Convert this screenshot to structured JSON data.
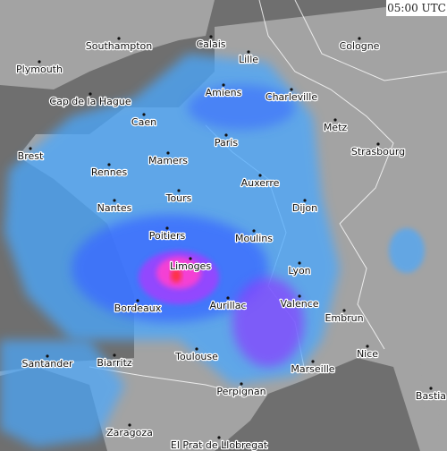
{
  "timestamp": "05:00 UTC",
  "cities": [
    {
      "name": "Southampton"
    },
    {
      "name": "Calais"
    },
    {
      "name": "Lille"
    },
    {
      "name": "Cologne"
    },
    {
      "name": "Plymouth"
    },
    {
      "name": "Amiens"
    },
    {
      "name": "Charleville"
    },
    {
      "name": "Cap de la Hague"
    },
    {
      "name": "Caen"
    },
    {
      "name": "Metz"
    },
    {
      "name": "Paris"
    },
    {
      "name": "Strasbourg"
    },
    {
      "name": "Brest"
    },
    {
      "name": "Mamers"
    },
    {
      "name": "Rennes"
    },
    {
      "name": "Auxerre"
    },
    {
      "name": "Tours"
    },
    {
      "name": "Nantes"
    },
    {
      "name": "Dijon"
    },
    {
      "name": "Poitiers"
    },
    {
      "name": "Moulins"
    },
    {
      "name": "Limoges"
    },
    {
      "name": "Lyon"
    },
    {
      "name": "Bordeaux"
    },
    {
      "name": "Aurillac"
    },
    {
      "name": "Valence"
    },
    {
      "name": "Embrun"
    },
    {
      "name": "Toulouse"
    },
    {
      "name": "Nice"
    },
    {
      "name": "Santander"
    },
    {
      "name": "Biarritz"
    },
    {
      "name": "Marseille"
    },
    {
      "name": "Perpignan"
    },
    {
      "name": "Bastia"
    },
    {
      "name": "Zaragoza"
    },
    {
      "name": "El Prat de Llobregat"
    }
  ]
}
